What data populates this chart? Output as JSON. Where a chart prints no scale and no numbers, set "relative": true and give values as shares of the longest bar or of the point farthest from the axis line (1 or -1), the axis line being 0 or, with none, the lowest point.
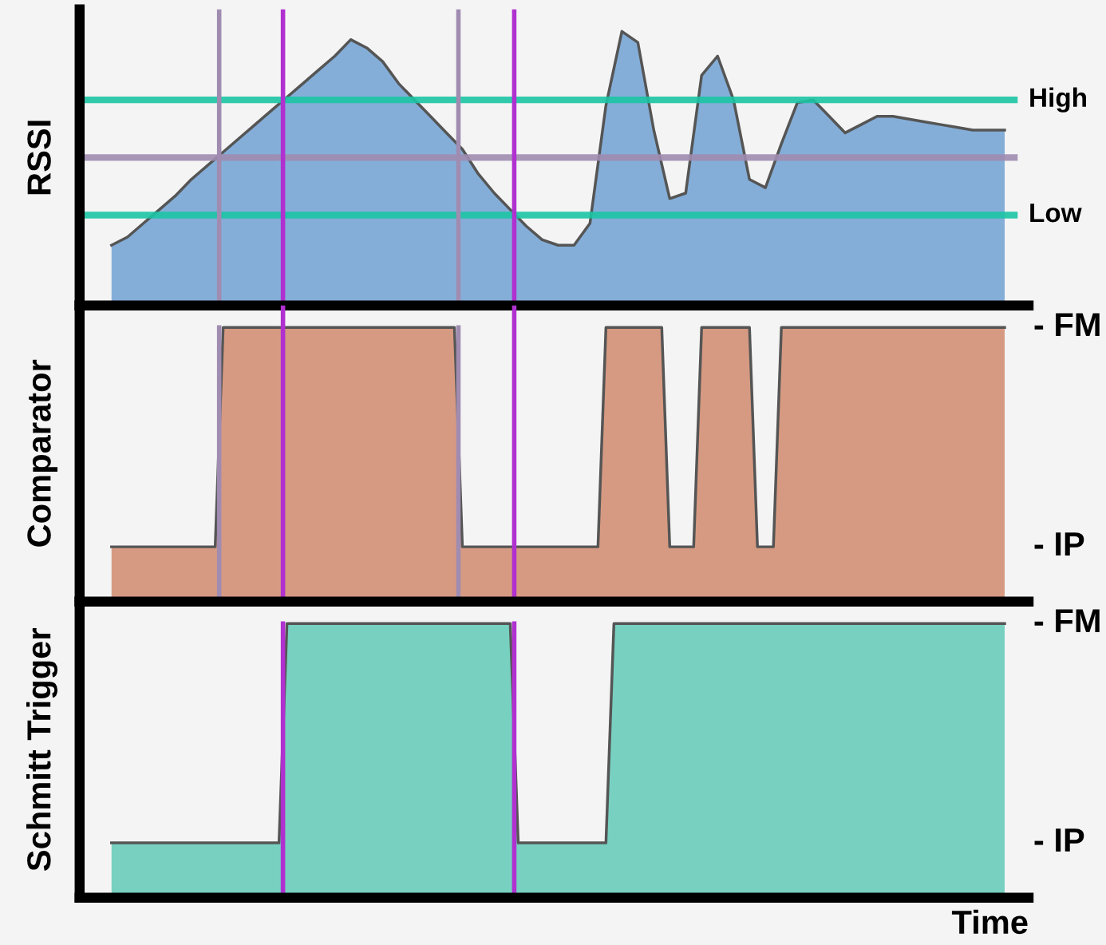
{
  "chart_data": [
    {
      "type": "area",
      "ylabel": "RSSI",
      "relative": true,
      "categories": [
        null,
        null,
        null,
        null,
        null,
        null,
        null,
        null,
        null,
        null,
        null,
        null,
        null,
        null,
        null,
        null,
        null,
        null,
        null,
        null,
        null,
        null,
        null,
        null,
        null,
        null,
        null,
        null,
        null,
        null,
        null,
        null,
        null,
        null,
        null,
        null,
        null,
        null,
        null,
        null,
        null,
        null,
        null,
        null,
        null,
        null,
        null,
        null,
        null,
        null,
        null,
        null,
        null,
        null,
        null,
        null,
        null
      ],
      "series": [
        {
          "color": "#84aed8",
          "values": [
            0.22,
            0.25,
            0.3,
            0.35,
            0.4,
            0.46,
            0.51,
            0.56,
            0.61,
            0.66,
            0.71,
            0.76,
            0.81,
            0.86,
            0.91,
            0.97,
            0.94,
            0.89,
            0.81,
            0.75,
            0.69,
            0.63,
            0.57,
            0.48,
            0.41,
            0.35,
            0.29,
            0.24,
            0.22,
            0.22,
            0.3,
            0.73,
            1.0,
            0.96,
            0.64,
            0.39,
            0.41,
            0.84,
            0.91,
            0.75,
            0.46,
            0.43,
            0.59,
            0.74,
            0.75,
            0.69,
            0.63,
            0.66,
            0.69,
            0.69,
            0.68,
            0.67,
            0.66,
            0.65,
            0.64,
            0.64,
            0.64
          ]
        }
      ],
      "ref_lines": [
        {
          "axis": "y",
          "value": 0.75,
          "label": "High",
          "color": "#1cc4a4"
        },
        {
          "axis": "y",
          "value": 0.54,
          "color": "#a08cb0"
        },
        {
          "axis": "y",
          "value": 0.33,
          "label": "Low",
          "color": "#1cc4a4"
        }
      ]
    },
    {
      "type": "area",
      "ylabel": "Comparator",
      "relative": true,
      "annotations": [
        "- FM",
        "- IP"
      ],
      "categories": [
        null,
        null,
        null,
        null,
        null,
        null,
        null,
        null,
        null,
        null,
        null,
        null,
        null,
        null,
        null,
        null,
        null,
        null,
        null,
        null,
        null,
        null,
        null,
        null,
        null,
        null,
        null,
        null,
        null,
        null,
        null,
        null,
        null,
        null,
        null,
        null,
        null,
        null,
        null,
        null,
        null,
        null,
        null,
        null,
        null,
        null,
        null,
        null,
        null,
        null,
        null,
        null,
        null,
        null,
        null,
        null,
        null,
        null,
        null,
        null,
        null,
        null,
        null,
        null,
        null,
        null,
        null,
        null,
        null,
        null,
        null,
        null,
        null,
        null,
        null,
        null,
        null,
        null,
        null,
        null,
        null,
        null,
        null,
        null,
        null,
        null,
        null,
        null,
        null,
        null,
        null,
        null,
        null,
        null,
        null,
        null,
        null,
        null,
        null,
        null,
        null,
        null,
        null,
        null,
        null,
        null,
        null,
        null,
        null,
        null,
        null,
        null,
        null
      ],
      "series": [
        {
          "color": "#d69a82",
          "values": [
            0.2,
            0.2,
            0.2,
            0.2,
            0.2,
            0.2,
            0.2,
            0.2,
            0.2,
            0.2,
            0.2,
            0.2,
            0.2,
            0.2,
            1,
            1,
            1,
            1,
            1,
            1,
            1,
            1,
            1,
            1,
            1,
            1,
            1,
            1,
            1,
            1,
            1,
            1,
            1,
            1,
            1,
            1,
            1,
            1,
            1,
            1,
            1,
            1,
            1,
            1,
            0.2,
            0.2,
            0.2,
            0.2,
            0.2,
            0.2,
            0.2,
            0.2,
            0.2,
            0.2,
            0.2,
            0.2,
            0.2,
            0.2,
            0.2,
            0.2,
            0.2,
            0.2,
            1,
            1,
            1,
            1,
            1,
            1,
            1,
            1,
            0.2,
            0.2,
            0.2,
            0.2,
            1,
            1,
            1,
            1,
            1,
            1,
            1,
            0.2,
            0.2,
            0.2,
            1,
            1,
            1,
            1,
            1,
            1,
            1,
            1,
            1,
            1,
            1,
            1,
            1,
            1,
            1,
            1,
            1,
            1,
            1,
            1,
            1,
            1,
            1,
            1,
            1,
            1,
            1,
            1,
            1
          ]
        }
      ]
    },
    {
      "type": "area",
      "ylabel": "Schmitt Trigger",
      "xlabel": "Time",
      "relative": true,
      "annotations": [
        "- FM",
        "- IP"
      ],
      "categories": [
        null,
        null,
        null,
        null,
        null,
        null,
        null,
        null,
        null,
        null,
        null,
        null,
        null,
        null,
        null,
        null,
        null,
        null,
        null,
        null,
        null,
        null,
        null,
        null,
        null,
        null,
        null,
        null,
        null,
        null,
        null,
        null,
        null,
        null,
        null,
        null,
        null,
        null,
        null,
        null,
        null,
        null,
        null,
        null,
        null,
        null,
        null,
        null,
        null,
        null,
        null,
        null,
        null,
        null,
        null,
        null,
        null,
        null,
        null,
        null,
        null,
        null,
        null,
        null,
        null,
        null,
        null,
        null,
        null,
        null,
        null,
        null,
        null,
        null,
        null,
        null,
        null,
        null,
        null,
        null,
        null,
        null,
        null,
        null,
        null,
        null,
        null,
        null,
        null,
        null,
        null,
        null,
        null,
        null,
        null,
        null,
        null,
        null,
        null,
        null,
        null,
        null,
        null,
        null,
        null,
        null,
        null,
        null,
        null,
        null,
        null,
        null,
        null
      ],
      "series": [
        {
          "color": "#78d0c0",
          "values": [
            0.2,
            0.2,
            0.2,
            0.2,
            0.2,
            0.2,
            0.2,
            0.2,
            0.2,
            0.2,
            0.2,
            0.2,
            0.2,
            0.2,
            0.2,
            0.2,
            0.2,
            0.2,
            0.2,
            0.2,
            0.2,
            0.2,
            1,
            1,
            1,
            1,
            1,
            1,
            1,
            1,
            1,
            1,
            1,
            1,
            1,
            1,
            1,
            1,
            1,
            1,
            1,
            1,
            1,
            1,
            1,
            1,
            1,
            1,
            1,
            1,
            1,
            0.2,
            0.2,
            0.2,
            0.2,
            0.2,
            0.2,
            0.2,
            0.2,
            0.2,
            0.2,
            0.2,
            0.2,
            1,
            1,
            1,
            1,
            1,
            1,
            1,
            1,
            1,
            1,
            1,
            1,
            1,
            1,
            1,
            1,
            1,
            1,
            1,
            1,
            1,
            1,
            1,
            1,
            1,
            1,
            1,
            1,
            1,
            1,
            1,
            1,
            1,
            1,
            1,
            1,
            1,
            1,
            1,
            1,
            1,
            1,
            1,
            1,
            1,
            1,
            1,
            1,
            1,
            1
          ]
        }
      ]
    }
  ]
}
